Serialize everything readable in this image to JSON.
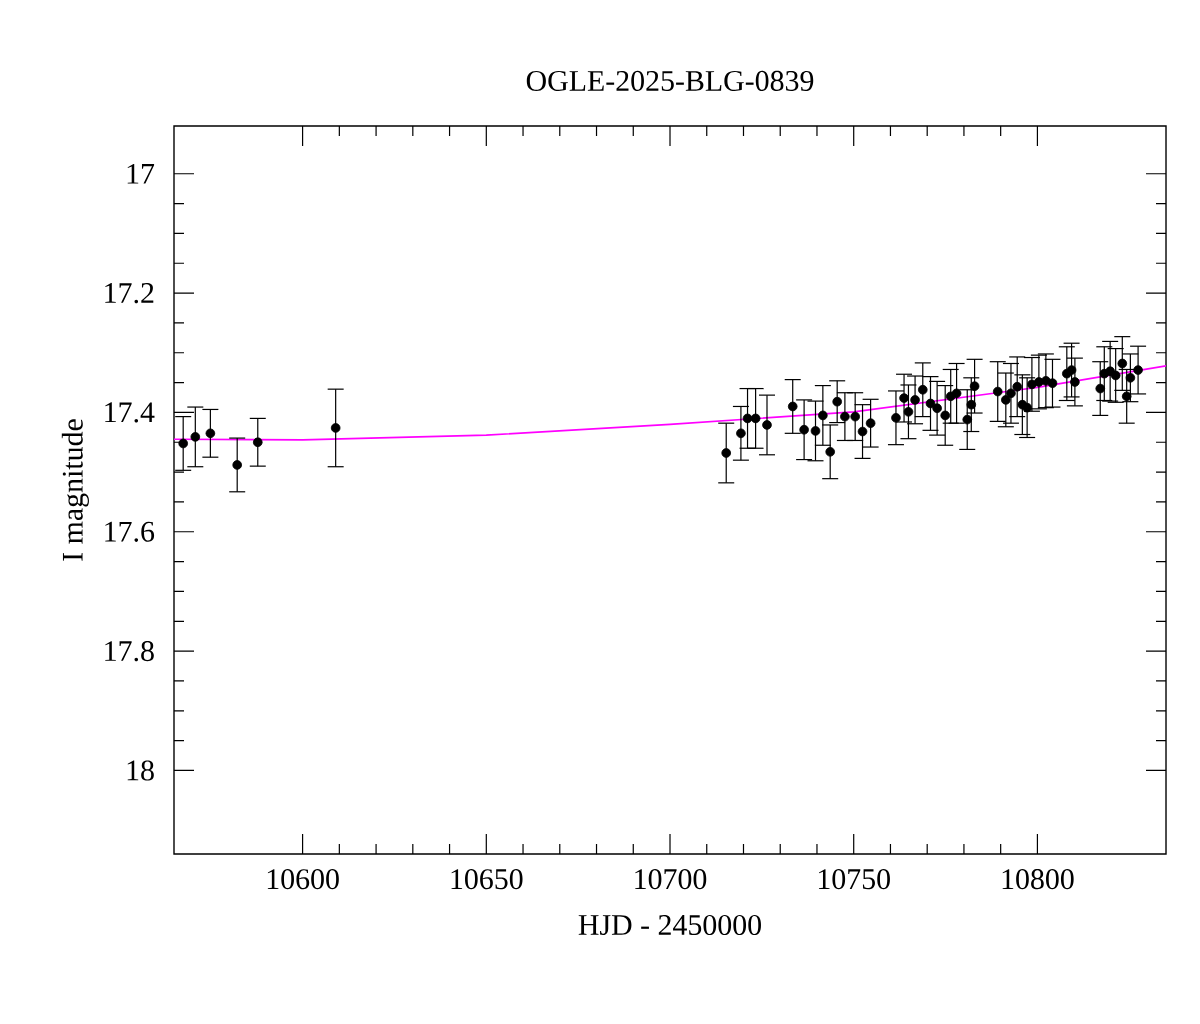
{
  "chart_data": {
    "type": "scatter",
    "title": "OGLE-2025-BLG-0839",
    "xlabel": "HJD - 2450000",
    "ylabel": "I magnitude",
    "xlim": [
      10565,
      10835
    ],
    "ylim": [
      18.14,
      16.92
    ],
    "xticks": [
      10600,
      10650,
      10700,
      10750,
      10800
    ],
    "yticks": [
      17,
      17.2,
      17.4,
      17.6,
      17.8,
      18
    ],
    "grid": false,
    "marker": "circle",
    "series": [
      {
        "color": "#000000",
        "x": [
          10567.5,
          10570.8,
          10574.9,
          10582.2,
          10587.8,
          10609,
          10715.3,
          10719.3,
          10721.1,
          10723.3,
          10726.4,
          10733.4,
          10736.5,
          10739.6,
          10741.6,
          10743.6,
          10745.5,
          10747.6,
          10750.4,
          10752.4,
          10754.6,
          10761.5,
          10763.7,
          10764.9,
          10766.7,
          10768.8,
          10770.9,
          10772.7,
          10774.9,
          10776.4,
          10778,
          10780.9,
          10782,
          10782.9,
          10789.2,
          10791.4,
          10792.8,
          10794.5,
          10795.9,
          10797.2,
          10798.5,
          10800.4,
          10802.3,
          10804.1,
          10808,
          10809.3,
          10810.2,
          10817.1,
          10818.2,
          10819.8,
          10821.3,
          10823.1,
          10824.3,
          10825.3,
          10827.4
        ],
        "values": [
          17.452,
          17.441,
          17.435,
          17.488,
          17.45,
          17.426,
          17.468,
          17.435,
          17.41,
          17.41,
          17.421,
          17.39,
          17.429,
          17.431,
          17.405,
          17.466,
          17.382,
          17.407,
          17.407,
          17.432,
          17.418,
          17.409,
          17.376,
          17.399,
          17.379,
          17.362,
          17.385,
          17.393,
          17.405,
          17.373,
          17.368,
          17.412,
          17.387,
          17.356,
          17.365,
          17.379,
          17.368,
          17.357,
          17.387,
          17.392,
          17.353,
          17.349,
          17.347,
          17.351,
          17.335,
          17.329,
          17.349,
          17.36,
          17.335,
          17.331,
          17.338,
          17.318,
          17.373,
          17.342,
          17.329
        ],
        "errors": [
          0.045,
          0.05,
          0.04,
          0.045,
          0.04,
          0.065,
          0.05,
          0.045,
          0.05,
          0.05,
          0.05,
          0.045,
          0.05,
          0.05,
          0.05,
          0.045,
          0.035,
          0.04,
          0.04,
          0.045,
          0.04,
          0.045,
          0.04,
          0.045,
          0.04,
          0.045,
          0.045,
          0.045,
          0.05,
          0.045,
          0.05,
          0.05,
          0.045,
          0.045,
          0.05,
          0.045,
          0.05,
          0.05,
          0.05,
          0.05,
          0.045,
          0.045,
          0.045,
          0.04,
          0.045,
          0.045,
          0.04,
          0.045,
          0.045,
          0.05,
          0.045,
          0.045,
          0.045,
          0.04,
          0.04
        ]
      },
      {
        "type": "line",
        "color": "#ff00ff",
        "marker": "none",
        "line_style": "solid",
        "x": [
          10565,
          10600,
          10650,
          10700,
          10750,
          10800,
          10835
        ],
        "values": [
          17.445,
          17.446,
          17.438,
          17.42,
          17.399,
          17.358,
          17.322
        ]
      }
    ]
  }
}
